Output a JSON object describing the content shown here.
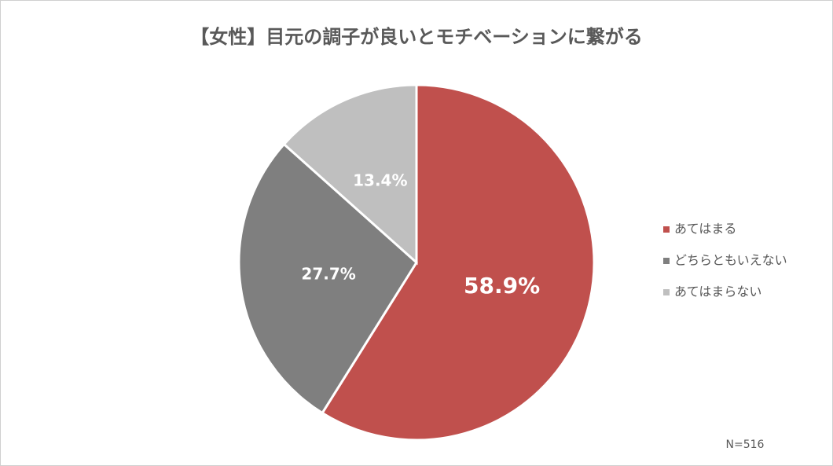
{
  "chart_data": {
    "type": "pie",
    "title": "【女性】目元の調子が良いとモチベーションに繋がる",
    "categories": [
      "あてはまる",
      "どちらともいえない",
      "あてはまらない"
    ],
    "values": [
      58.9,
      27.7,
      13.4
    ],
    "value_labels": [
      "58.9%",
      "27.7%",
      "13.4%"
    ],
    "colors": [
      "#c0504d",
      "#7f7f7f",
      "#bfbfbf"
    ],
    "legend": "right",
    "annotation": "N=516"
  }
}
